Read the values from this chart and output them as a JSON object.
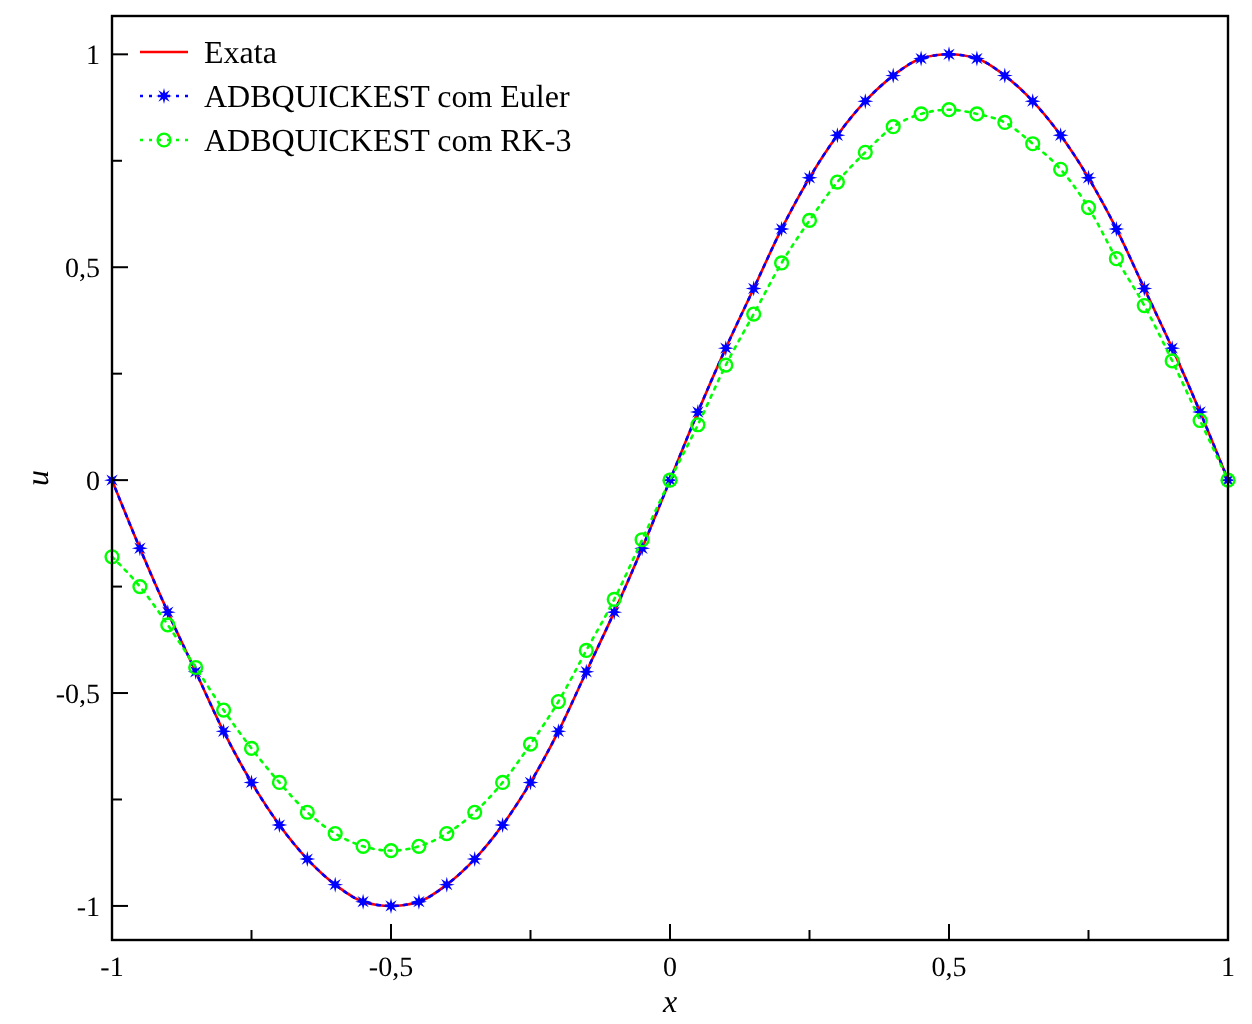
{
  "chart_data": {
    "type": "line",
    "xlabel": "x",
    "ylabel": "u",
    "xlim": [
      -1,
      1
    ],
    "ylim": [
      -1.08,
      1.09
    ],
    "xticks": [
      -1,
      {
        "value": -0.75,
        "label": null
      },
      {
        "value": -0.5,
        "label": "-0,5"
      },
      {
        "value": -0.25,
        "label": null
      },
      0,
      {
        "value": 0.25,
        "label": null
      },
      {
        "value": 0.5,
        "label": "0,5"
      },
      {
        "value": 0.75,
        "label": null
      },
      1
    ],
    "yticks": [
      -1,
      {
        "value": -0.75,
        "label": null
      },
      {
        "value": -0.5,
        "label": "-0,5"
      },
      {
        "value": -0.25,
        "label": null
      },
      0,
      {
        "value": 0.25,
        "label": null
      },
      {
        "value": 0.5,
        "label": "0,5"
      },
      {
        "value": 0.75,
        "label": null
      },
      1
    ],
    "x": [
      -1,
      -0.95,
      -0.9,
      -0.85,
      -0.8,
      -0.75,
      -0.7,
      -0.65,
      -0.6,
      -0.55,
      -0.5,
      -0.45,
      -0.4,
      -0.35,
      -0.3,
      -0.25,
      -0.2,
      -0.15,
      -0.1,
      -0.05,
      0,
      0.05,
      0.1,
      0.15,
      0.2,
      0.25,
      0.3,
      0.35,
      0.4,
      0.45,
      0.5,
      0.55,
      0.6,
      0.65,
      0.7,
      0.75,
      0.8,
      0.85,
      0.9,
      0.95,
      1
    ],
    "grid": false,
    "legend": "top left",
    "series": [
      {
        "name": "Exata",
        "color": "#ff0000",
        "marker": "none",
        "line_style": "solid",
        "values": [
          0,
          -0.16,
          -0.31,
          -0.45,
          -0.59,
          -0.71,
          -0.81,
          -0.89,
          -0.95,
          -0.99,
          -1,
          -0.99,
          -0.95,
          -0.89,
          -0.81,
          -0.71,
          -0.59,
          -0.45,
          -0.31,
          -0.16,
          0,
          0.16,
          0.31,
          0.45,
          0.59,
          0.71,
          0.81,
          0.89,
          0.95,
          0.99,
          1,
          0.99,
          0.95,
          0.89,
          0.81,
          0.71,
          0.59,
          0.45,
          0.31,
          0.16,
          0
        ]
      },
      {
        "name": "ADBQUICKEST com Euler",
        "color": "#0000ff",
        "marker": "star",
        "line_style": "dotted",
        "values": [
          0,
          -0.16,
          -0.31,
          -0.45,
          -0.59,
          -0.71,
          -0.81,
          -0.89,
          -0.95,
          -0.99,
          -1,
          -0.99,
          -0.95,
          -0.89,
          -0.81,
          -0.71,
          -0.59,
          -0.45,
          -0.31,
          -0.16,
          0,
          0.16,
          0.31,
          0.45,
          0.59,
          0.71,
          0.81,
          0.89,
          0.95,
          0.99,
          1,
          0.99,
          0.95,
          0.89,
          0.81,
          0.71,
          0.59,
          0.45,
          0.31,
          0.16,
          0
        ]
      },
      {
        "name": "ADBQUICKEST com RK-3",
        "color": "#00ff00",
        "marker": "circle",
        "line_style": "dotted",
        "values": [
          -0.18,
          -0.25,
          -0.34,
          -0.44,
          -0.54,
          -0.63,
          -0.71,
          -0.78,
          -0.83,
          -0.86,
          -0.87,
          -0.86,
          -0.83,
          -0.78,
          -0.71,
          -0.62,
          -0.52,
          -0.4,
          -0.28,
          -0.14,
          0,
          0.13,
          0.27,
          0.39,
          0.51,
          0.61,
          0.7,
          0.77,
          0.83,
          0.86,
          0.87,
          0.86,
          0.84,
          0.79,
          0.73,
          0.64,
          0.52,
          0.41,
          0.28,
          0.14,
          0
        ]
      }
    ]
  }
}
